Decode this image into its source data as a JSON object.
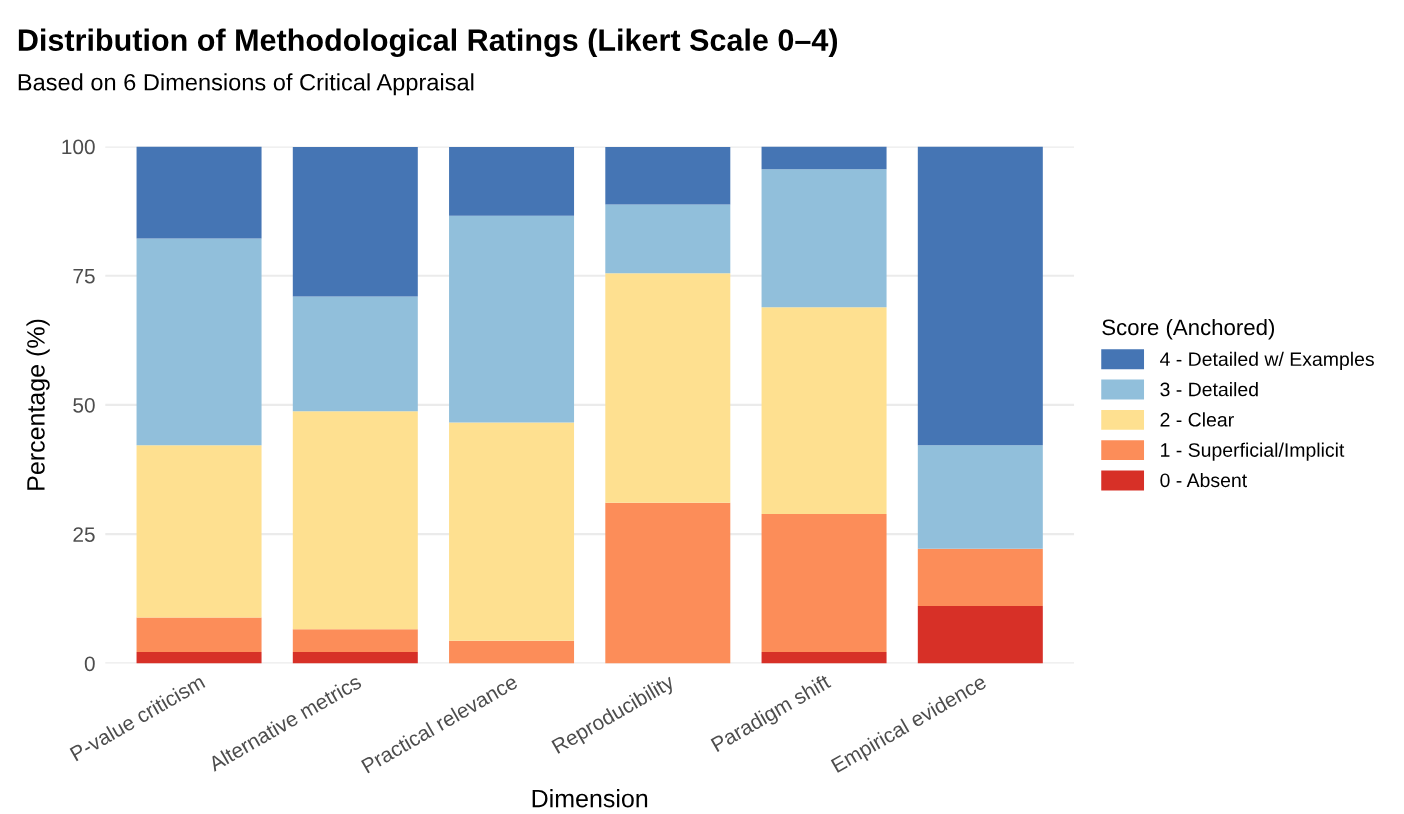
{
  "chart_data": {
    "type": "bar",
    "title": "Distribution of Methodological Ratings (Likert Scale 0–4)",
    "subtitle": "Based on 6 Dimensions of Critical Appraisal",
    "xlabel": "Dimension",
    "ylabel": "Percentage (%)",
    "legend_title": "Score (Anchored)",
    "categories": [
      "P-value criticism",
      "Alternative metrics",
      "Practical relevance",
      "Reproducibility",
      "Paradigm shift",
      "Empirical evidence"
    ],
    "stacked": true,
    "ylim": [
      0,
      100
    ],
    "yticks": [
      0,
      25,
      50,
      75,
      100
    ],
    "grid": "y",
    "legend": "right",
    "series": [
      {
        "name": "0 - Absent",
        "color": "#d73027",
        "values": [
          2.2,
          2.2,
          0,
          0,
          2.2,
          11.1
        ]
      },
      {
        "name": "1 - Superficial/Implicit",
        "color": "#fc8d59",
        "values": [
          6.7,
          4.4,
          4.4,
          31.1,
          26.7,
          11.1
        ]
      },
      {
        "name": "2 - Clear",
        "color": "#fee090",
        "values": [
          33.3,
          42.2,
          42.2,
          44.4,
          40,
          0
        ]
      },
      {
        "name": "3 - Detailed",
        "color": "#91bfdb",
        "values": [
          40,
          22.2,
          40,
          13.3,
          26.7,
          20
        ]
      },
      {
        "name": "4 - Detailed w/ Examples",
        "color": "#4575b4",
        "values": [
          17.8,
          28.9,
          13.3,
          11.1,
          4.4,
          57.8
        ]
      }
    ]
  }
}
